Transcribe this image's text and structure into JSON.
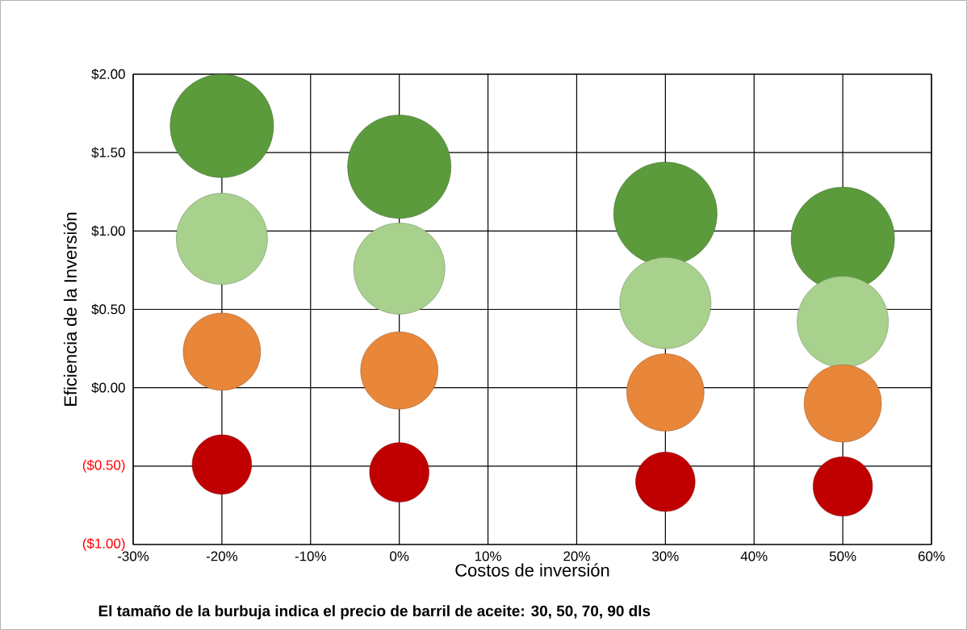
{
  "chart_data": {
    "type": "bubble",
    "xlabel": "Costos de inversión",
    "ylabel": "Eficiencia de la Inversión",
    "annotations": [
      "El tamaño de la burbuja indica el precio de barril de aceite: 30, 50, 70, 90 dls"
    ],
    "x": [
      -20,
      0,
      30,
      50
    ],
    "xlim": [
      -30,
      60
    ],
    "xticks": [
      {
        "value": -30,
        "label": "-30%"
      },
      {
        "value": -20,
        "label": "-20%"
      },
      {
        "value": -10,
        "label": "-10%"
      },
      {
        "value": 0,
        "label": "0%"
      },
      {
        "value": 10,
        "label": "10%"
      },
      {
        "value": 20,
        "label": "20%"
      },
      {
        "value": 30,
        "label": "30%"
      },
      {
        "value": 40,
        "label": "40%"
      },
      {
        "value": 50,
        "label": "50%"
      },
      {
        "value": 60,
        "label": "60%"
      }
    ],
    "ylim": [
      -1,
      2
    ],
    "yticks": [
      {
        "value": -1,
        "label": "($1.00)"
      },
      {
        "value": -0.5,
        "label": "($0.50)"
      },
      {
        "value": 0,
        "label": "$0.00"
      },
      {
        "value": 0.5,
        "label": "$0.50"
      },
      {
        "value": 1,
        "label": "$1.00"
      },
      {
        "value": 1.5,
        "label": "$1.50"
      },
      {
        "value": 2,
        "label": "$2.00"
      }
    ],
    "grid": true,
    "series": [
      {
        "color": "#5b9b3c",
        "values": [
          1.67,
          1.41,
          1.11,
          0.95
        ],
        "sizes": [
          1,
          1,
          1,
          1
        ]
      },
      {
        "color": "#a9d18e",
        "values": [
          0.95,
          0.76,
          0.54,
          0.42
        ],
        "sizes": [
          0.78,
          0.78,
          0.78,
          0.78
        ]
      },
      {
        "color": "#e8863a",
        "values": [
          0.23,
          0.11,
          -0.03,
          -0.1
        ],
        "sizes": [
          0.56,
          0.56,
          0.56,
          0.56
        ]
      },
      {
        "color": "#c00000",
        "values": [
          -0.49,
          -0.54,
          -0.6,
          -0.63
        ],
        "sizes": [
          0.33,
          0.33,
          0.33,
          0.33
        ]
      }
    ]
  }
}
